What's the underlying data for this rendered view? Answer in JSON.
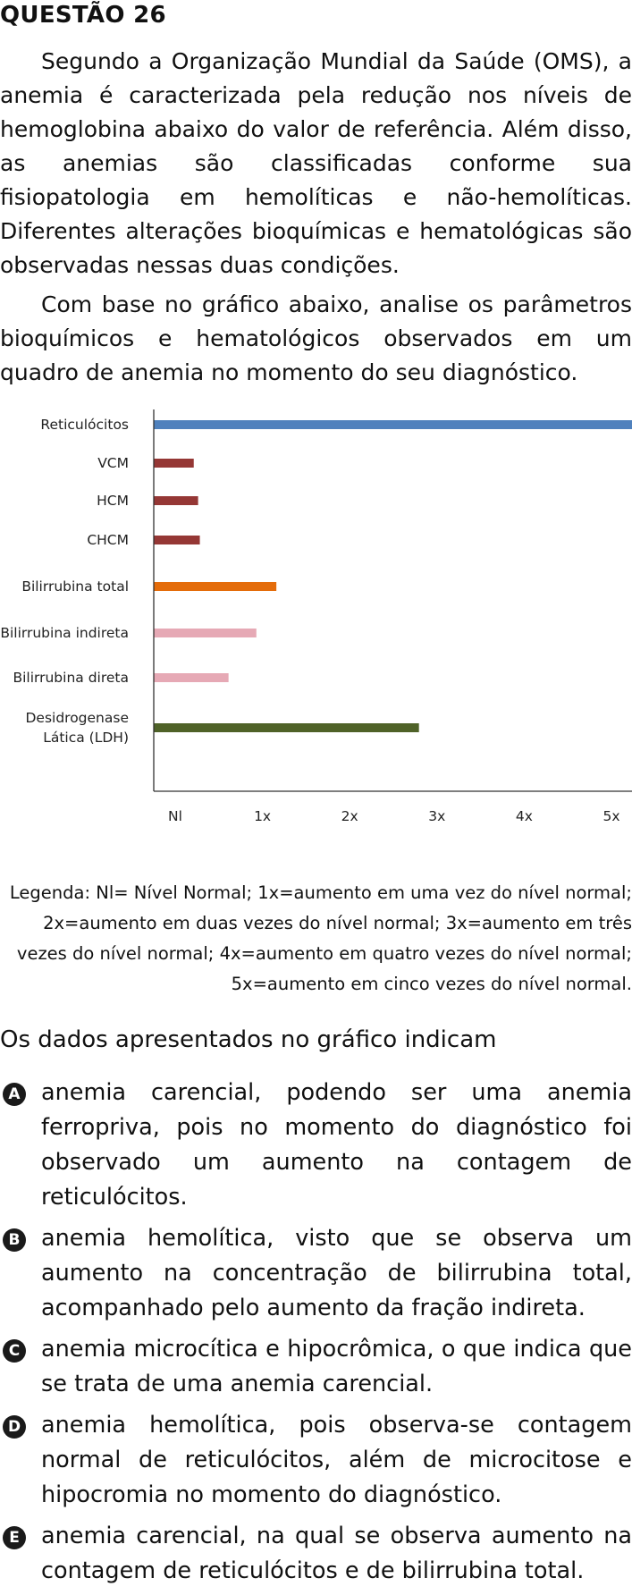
{
  "header": {
    "title": "QUESTÃO 26"
  },
  "text": {
    "p1": "Segundo a Organização Mundial da Saúde (OMS), a anemia é caracterizada pela redução nos níveis de hemoglobina abaixo do valor de referência. Além disso, as anemias são classificadas conforme sua fisiopatologia em hemolíticas e não-hemolíticas. Diferentes alterações bioquímicas e hematológicas são observadas nessas duas condições.",
    "p2": "Com base no gráfico abaixo, analise os parâmetros bioquímicos e hematológicos observados em um quadro de anemia no momento do seu diagnóstico."
  },
  "chart_data": {
    "type": "bar",
    "orientation": "horizontal",
    "categories": [
      "Reticulócitos",
      "VCM",
      "HCM",
      "CHCM",
      "Bilirrubina total",
      "Bilirrubina indireta",
      "Bilirrubina direta",
      "Desidrogenase Lática (LDH)"
    ],
    "category_lines": [
      [
        "Reticulócitos"
      ],
      [
        "VCM"
      ],
      [
        "HCM"
      ],
      [
        "CHCM"
      ],
      [
        "Bilirrubina total"
      ],
      [
        "Bilirrubina indireta"
      ],
      [
        "Bilirrubina direta"
      ],
      [
        "Desidrogenase",
        "Lática (LDH)"
      ]
    ],
    "values": [
      5.5,
      0.46,
      0.51,
      0.53,
      1.41,
      1.18,
      0.86,
      3.05
    ],
    "colors": [
      "#4F81BD",
      "#953735",
      "#953735",
      "#953735",
      "#E46C0A",
      "#E6A9B5",
      "#E6A9B5",
      "#4F6228"
    ],
    "xticks": [
      "Nl",
      "1x",
      "2x",
      "3x",
      "4x",
      "5x"
    ],
    "xlim": [
      0,
      5.5
    ],
    "grid": false,
    "title": "",
    "xlabel": "",
    "ylabel": ""
  },
  "legend_text": "Legenda: Nl= Nível Normal; 1x=aumento em uma vez do nível normal; 2x=aumento em duas vezes do nível normal; 3x=aumento em três vezes do nível normal; 4x=aumento em quatro vezes do nível normal; 5x=aumento em cinco vezes do nível normal.",
  "question": "Os dados apresentados no gráfico indicam",
  "options": [
    {
      "letter": "A",
      "text": "anemia carencial, podendo ser uma anemia ferropriva, pois no momento do diagnóstico foi observado um aumento na contagem de reticulócitos."
    },
    {
      "letter": "B",
      "text": "anemia hemolítica, visto que se observa um aumento na concentração de bilirrubina total, acompanhado pelo aumento da fração indireta."
    },
    {
      "letter": "C",
      "text": "anemia microcítica e hipocrômica, o que indica que se trata de uma anemia carencial."
    },
    {
      "letter": "D",
      "text": "anemia hemolítica, pois observa-se contagem normal de reticulócitos, além de microcitose e hipocromia no momento do diagnóstico."
    },
    {
      "letter": "E",
      "text": "anemia carencial, na qual se observa aumento na contagem de reticulócitos e de bilirrubina total."
    }
  ]
}
